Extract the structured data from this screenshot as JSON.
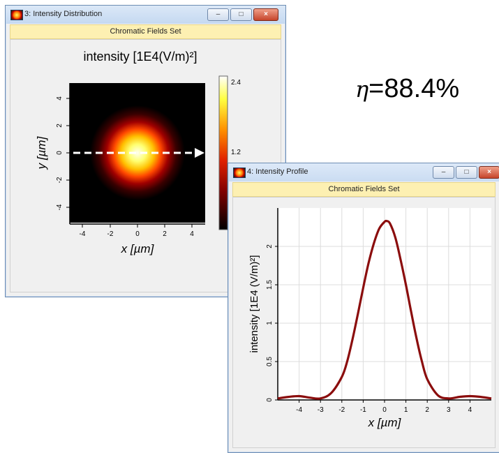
{
  "annotation": {
    "symbol": "η",
    "equals": "=",
    "value": "88.4%"
  },
  "window_distribution": {
    "title": "3: Intensity Distribution",
    "subtitle": "Chromatic Fields Set",
    "plot_title": "intensity [1E4(V/m)²]",
    "x_label": "x [µm]",
    "y_label": "y [µm]",
    "x_ticks": [
      "-4",
      "-2",
      "0",
      "2",
      "4"
    ],
    "y_ticks": [
      "4",
      "2",
      "0",
      "-2",
      "-4"
    ],
    "colorbar_ticks": [
      "2.4",
      "1.2"
    ],
    "controls": {
      "minimize": "–",
      "maximize": "□",
      "close": "×"
    }
  },
  "window_profile": {
    "title": "4: Intensity Profile",
    "subtitle": "Chromatic Fields Set",
    "controls": {
      "minimize": "–",
      "maximize": "□",
      "close": "×"
    }
  },
  "chart_data": {
    "type": "line",
    "xlabel": "x [µm]",
    "ylabel": "intensity [1E4 (V/m)²]",
    "x_ticks": [
      "-4",
      "-3",
      "-2",
      "-1",
      "0",
      "1",
      "2",
      "3",
      "4"
    ],
    "y_ticks": [
      "0",
      "0.5",
      "1",
      "1.5",
      "2"
    ],
    "xlim": [
      -5,
      5
    ],
    "ylim": [
      0,
      2.5
    ],
    "grid": true,
    "color": "#8b0d0d",
    "series": [
      {
        "x": [
          -5,
          -4.5,
          -4,
          -3.5,
          -3,
          -2.5,
          -2,
          -1.75,
          -1.5,
          -1.25,
          -1,
          -0.75,
          -0.5,
          -0.25,
          0,
          0.1,
          0.25,
          0.5,
          0.75,
          1,
          1.25,
          1.5,
          1.75,
          2,
          2.5,
          3,
          3.5,
          4,
          4.5,
          5
        ],
        "values": [
          0.02,
          0.04,
          0.05,
          0.03,
          0.02,
          0.09,
          0.3,
          0.5,
          0.79,
          1.12,
          1.46,
          1.78,
          2.04,
          2.23,
          2.32,
          2.33,
          2.3,
          2.12,
          1.83,
          1.5,
          1.14,
          0.8,
          0.5,
          0.27,
          0.06,
          0.02,
          0.04,
          0.05,
          0.04,
          0.02
        ]
      }
    ]
  }
}
